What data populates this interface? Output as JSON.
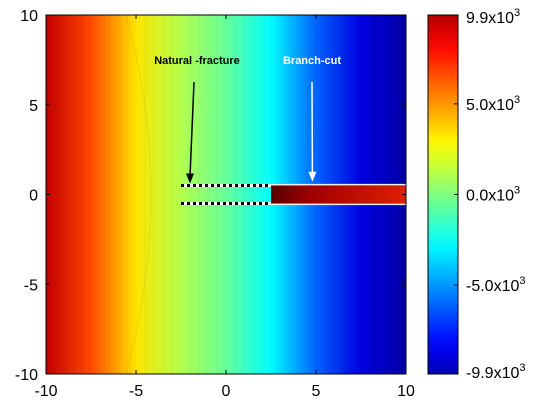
{
  "chart_data": {
    "type": "heatmap",
    "title": "",
    "xlabel": "",
    "ylabel": "",
    "xlim": [
      -10,
      10
    ],
    "ylim": [
      -10,
      10
    ],
    "xticks": [
      "-10",
      "-5",
      "0",
      "5",
      "10"
    ],
    "yticks": [
      "10",
      "5",
      "0",
      "-5",
      "-10"
    ],
    "grid": false,
    "colormap": "jet",
    "colorbar": {
      "position": "right",
      "range": [
        -9900,
        9900
      ],
      "ticks": [
        {
          "value": 9900,
          "mantissa": "9.9x10",
          "exp": "3"
        },
        {
          "value": 5000,
          "mantissa": "5.0x10",
          "exp": "3"
        },
        {
          "value": 0,
          "mantissa": "0.0x10",
          "exp": "3"
        },
        {
          "value": -5000,
          "mantissa": "-5.0x10",
          "exp": "3"
        },
        {
          "value": -9900,
          "mantissa": "-9.9x10",
          "exp": "3"
        }
      ]
    },
    "field_profile_along_x": [
      {
        "x": -10,
        "value": 8600
      },
      {
        "x": -7.5,
        "value": 6000
      },
      {
        "x": -5,
        "value": 3000
      },
      {
        "x": -2.5,
        "value": 1000
      },
      {
        "x": 0,
        "value": -500
      },
      {
        "x": 2.5,
        "value": -2500
      },
      {
        "x": 5,
        "value": -5500
      },
      {
        "x": 7.5,
        "value": -8000
      },
      {
        "x": 10,
        "value": -9200
      }
    ],
    "branch_cut": {
      "x_start": 2.5,
      "x_end": 10,
      "y": 0,
      "value_start": 6000,
      "value_end": 9900
    },
    "natural_fracture": {
      "x_start": -2.5,
      "x_end": 2.5,
      "y_top": 0.5,
      "y_bottom": -0.5
    },
    "annotations": [
      {
        "label": "Natural -fracture",
        "arrow_x": -2,
        "arrow_y": 0.5,
        "color": "#000000"
      },
      {
        "label": "Branch-cut",
        "arrow_x": 4.8,
        "arrow_y": 0.6,
        "color": "#ffffff"
      }
    ]
  }
}
